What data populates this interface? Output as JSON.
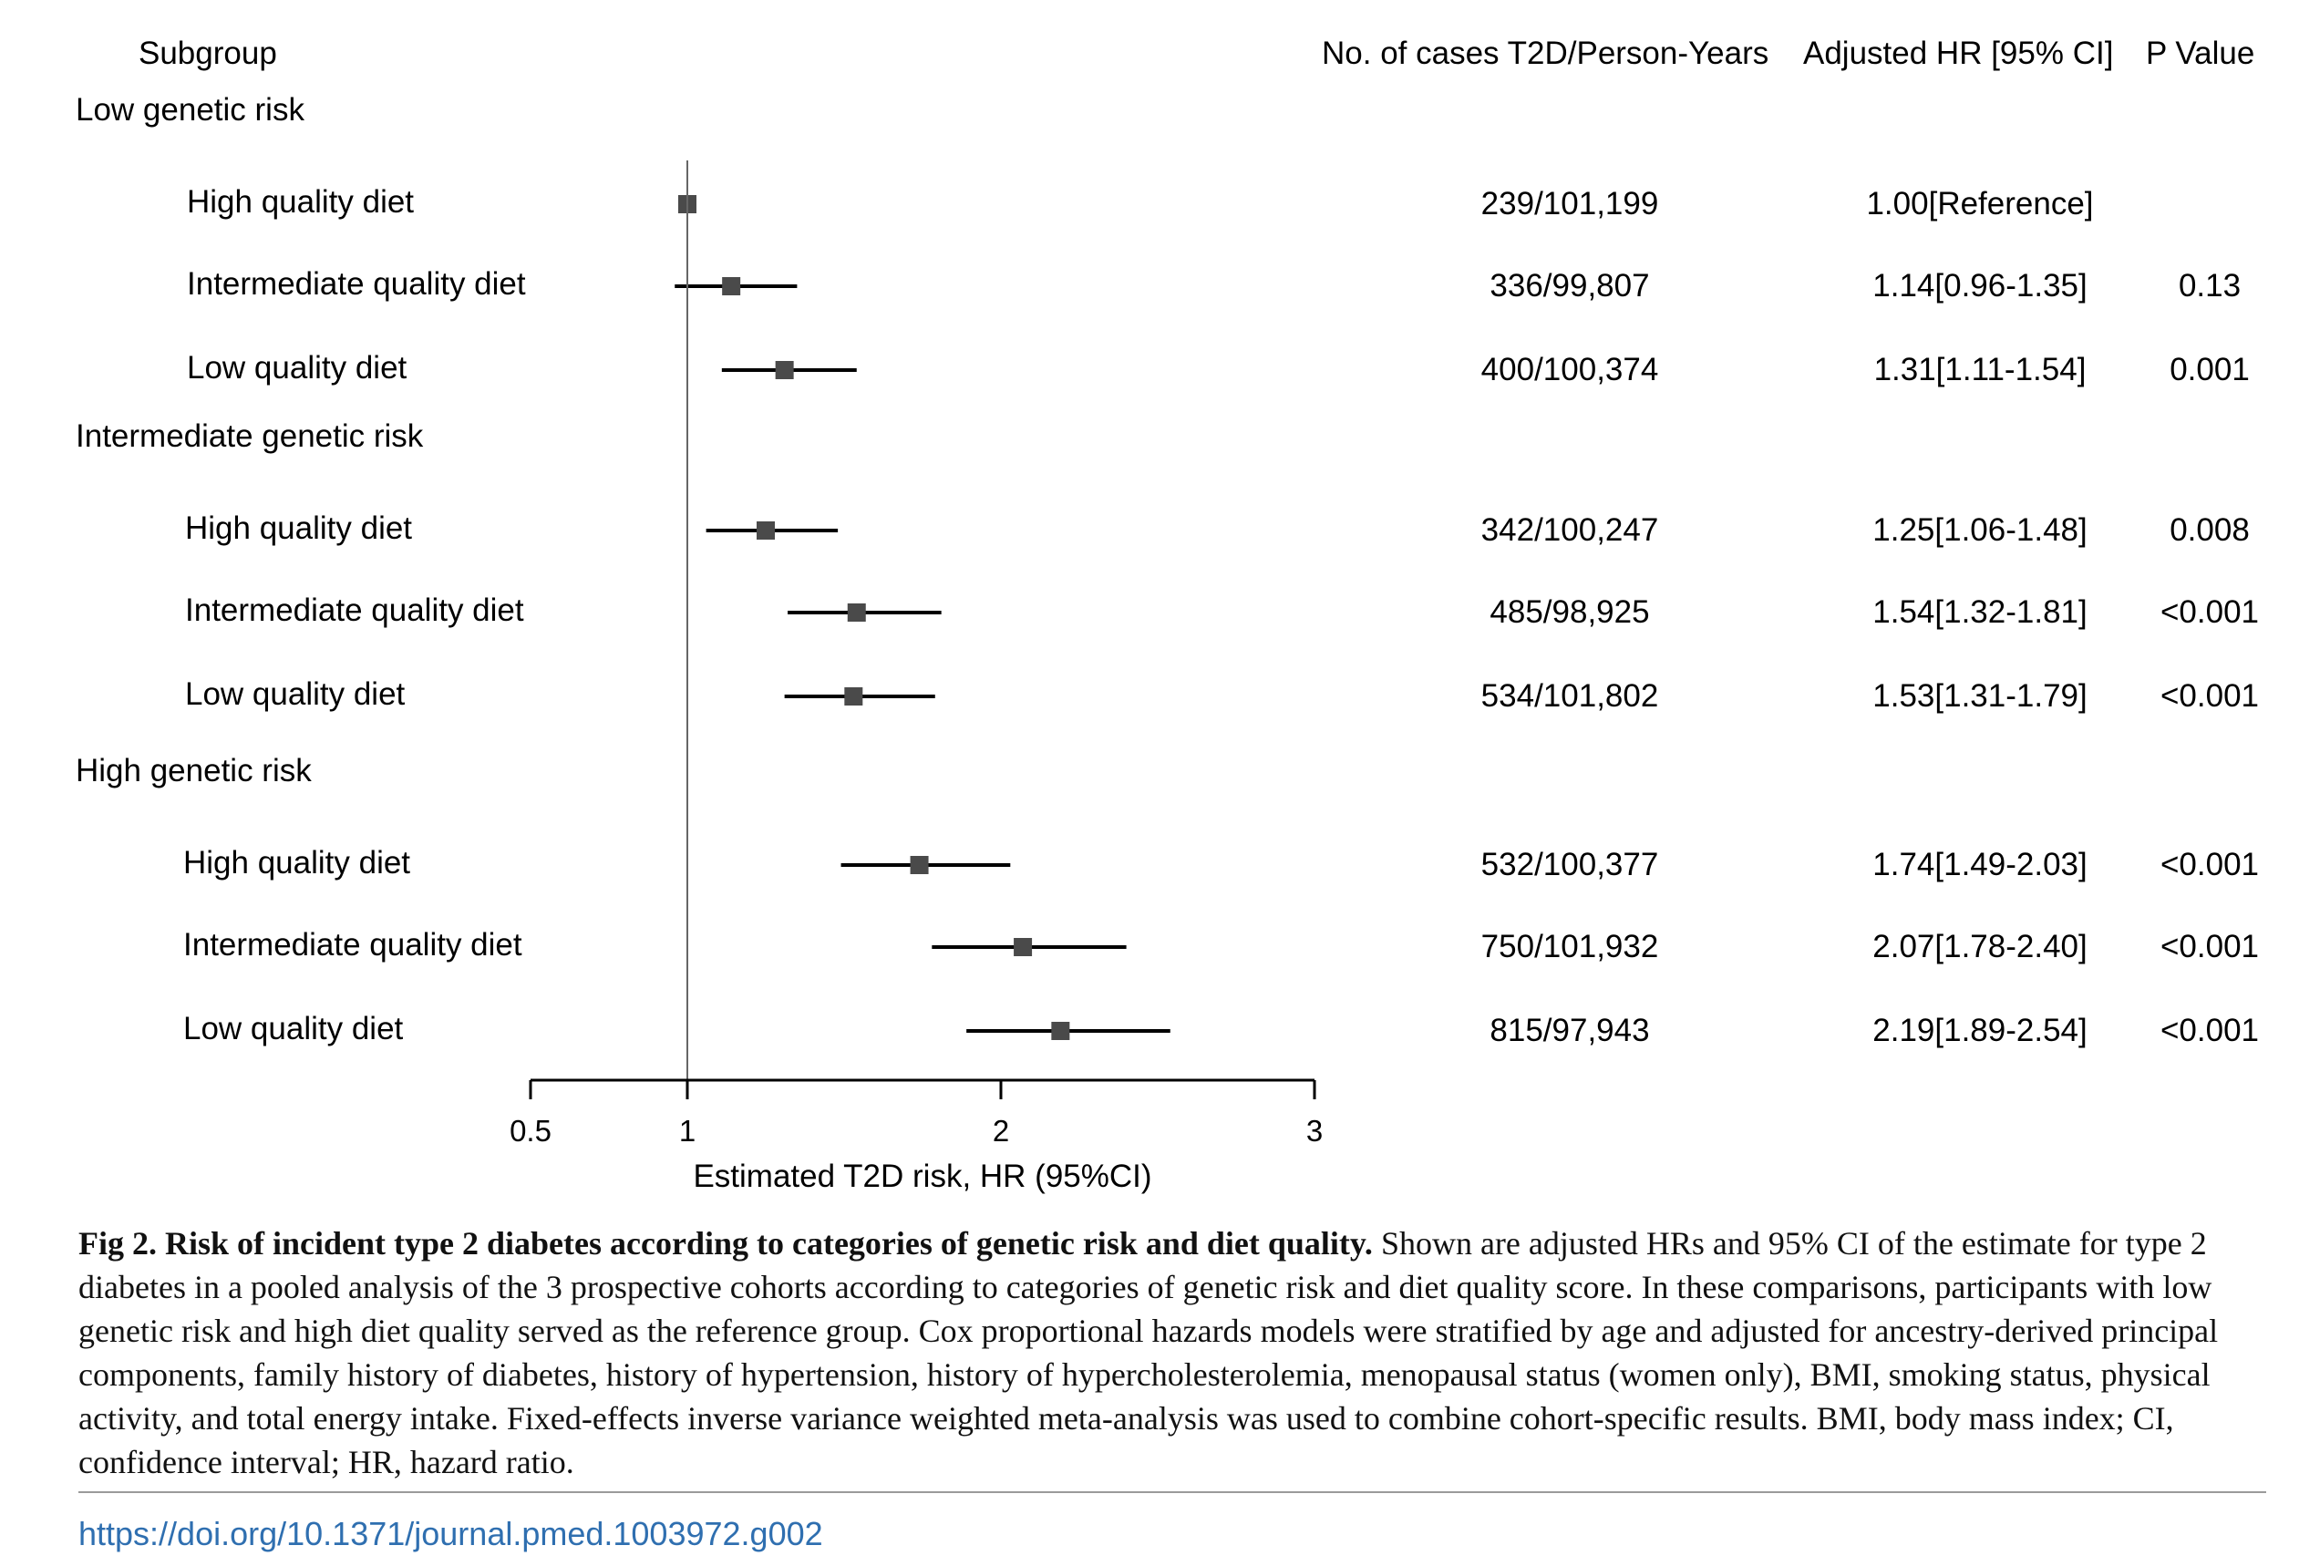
{
  "headers": {
    "subgroup": "Subgroup",
    "cases": "No. of cases T2D/Person-Years",
    "hr": "Adjusted HR [95% CI]",
    "p": "P Value"
  },
  "chart_data": {
    "type": "forest",
    "xlabel": "Estimated T2D risk, HR (95%CI)",
    "xlim": [
      0.5,
      3
    ],
    "xticks": [
      0.5,
      1,
      2,
      3
    ],
    "xtick_labels": [
      "0.5",
      "1",
      "2",
      "3"
    ],
    "reference_line": 1,
    "marker_color": "#4a4a4a",
    "groups": [
      {
        "label": "Low genetic risk",
        "rows": [
          {
            "label": "High quality diet",
            "hr": 1.0,
            "lo": 1.0,
            "hi": 1.0,
            "cases": "239/101,199",
            "hr_text": "1.00[Reference]",
            "p": ""
          },
          {
            "label": "Intermediate quality diet",
            "hr": 1.14,
            "lo": 0.96,
            "hi": 1.35,
            "cases": "336/99,807",
            "hr_text": "1.14[0.96-1.35]",
            "p": "0.13"
          },
          {
            "label": "Low quality diet",
            "hr": 1.31,
            "lo": 1.11,
            "hi": 1.54,
            "cases": "400/100,374",
            "hr_text": "1.31[1.11-1.54]",
            "p": "0.001"
          }
        ]
      },
      {
        "label": "Intermediate genetic risk",
        "rows": [
          {
            "label": "High quality diet",
            "hr": 1.25,
            "lo": 1.06,
            "hi": 1.48,
            "cases": "342/100,247",
            "hr_text": "1.25[1.06-1.48]",
            "p": "0.008"
          },
          {
            "label": "Intermediate quality diet",
            "hr": 1.54,
            "lo": 1.32,
            "hi": 1.81,
            "cases": "485/98,925",
            "hr_text": "1.54[1.32-1.81]",
            "p": "<0.001"
          },
          {
            "label": "Low quality diet",
            "hr": 1.53,
            "lo": 1.31,
            "hi": 1.79,
            "cases": "534/101,802",
            "hr_text": "1.53[1.31-1.79]",
            "p": "<0.001"
          }
        ]
      },
      {
        "label": "High genetic risk",
        "rows": [
          {
            "label": "High quality diet",
            "hr": 1.74,
            "lo": 1.49,
            "hi": 2.03,
            "cases": "532/100,377",
            "hr_text": "1.74[1.49-2.03]",
            "p": "<0.001"
          },
          {
            "label": "Intermediate quality diet",
            "hr": 2.07,
            "lo": 1.78,
            "hi": 2.4,
            "cases": "750/101,932",
            "hr_text": "2.07[1.78-2.40]",
            "p": "<0.001"
          },
          {
            "label": "Low quality diet",
            "hr": 2.19,
            "lo": 1.89,
            "hi": 2.54,
            "cases": "815/97,943",
            "hr_text": "2.19[1.89-2.54]",
            "p": "<0.001"
          }
        ]
      }
    ]
  },
  "caption": {
    "lead": "Fig 2.  Risk of incident type 2 diabetes according to categories of genetic risk and diet quality.",
    "body": " Shown are adjusted HRs and 95% CI of the estimate for type 2 diabetes in a pooled analysis of the 3 prospective cohorts according to categories of genetic risk and diet quality score. In these comparisons, participants with low genetic risk and high diet quality served as the reference group. Cox proportional hazards models were stratified by age and adjusted for ancestry-derived principal components, family history of diabetes, history of hypertension, history of hypercholesterolemia, menopausal status (women only), BMI, smoking status, physical activity, and total energy intake. Fixed-effects inverse variance weighted meta-analysis was used to combine cohort-specific results. BMI, body mass index; CI, confidence interval; HR, hazard ratio."
  },
  "doi": "https://doi.org/10.1371/journal.pmed.1003972.g002"
}
